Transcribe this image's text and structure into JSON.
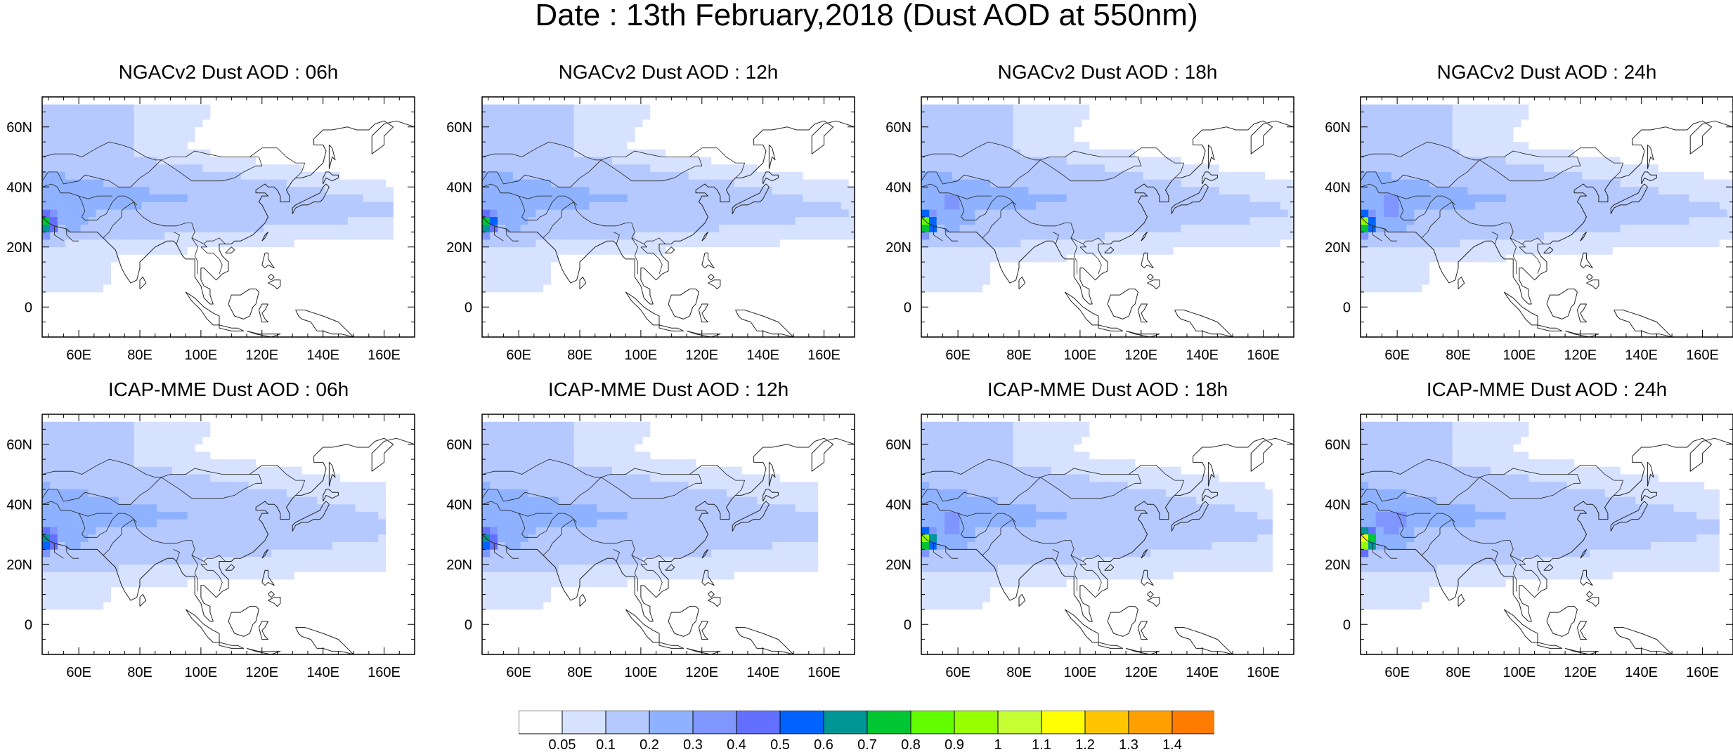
{
  "title": "Date : 13th February,2018 (Dust AOD at 550nm)",
  "map": {
    "lon_range": [
      48,
      170
    ],
    "lat_range": [
      -10,
      70
    ],
    "lon_ticks": [
      "60E",
      "80E",
      "100E",
      "120E",
      "140E",
      "160E"
    ],
    "lat_ticks": [
      "60N",
      "40N",
      "20N",
      "0"
    ]
  },
  "panels": [
    {
      "id": "ngac-06",
      "title": "NGACv2 Dust AOD : 06h",
      "model": "NGACv2",
      "hour": "06h",
      "row": 0,
      "col": 0,
      "band_lat": [
        10,
        55
      ],
      "core_strength": 0.55,
      "tail_lon": 164
    },
    {
      "id": "ngac-12",
      "title": "NGACv2 Dust AOD : 12h",
      "model": "NGACv2",
      "hour": "12h",
      "row": 0,
      "col": 1,
      "band_lat": [
        8,
        55
      ],
      "core_strength": 0.6,
      "tail_lon": 170
    },
    {
      "id": "ngac-18",
      "title": "NGACv2 Dust AOD : 18h",
      "model": "NGACv2",
      "hour": "18h",
      "row": 0,
      "col": 2,
      "band_lat": [
        8,
        58
      ],
      "core_strength": 0.75,
      "tail_lon": 170
    },
    {
      "id": "ngac-24",
      "title": "NGACv2 Dust AOD : 24h",
      "model": "NGACv2",
      "hour": "24h",
      "row": 0,
      "col": 3,
      "band_lat": [
        8,
        58
      ],
      "core_strength": 0.8,
      "tail_lon": 170
    },
    {
      "id": "icap-06",
      "title": "ICAP-MME Dust AOD : 06h",
      "model": "ICAP-MME",
      "hour": "06h",
      "row": 1,
      "col": 0,
      "band_lat": [
        5,
        60
      ],
      "core_strength": 0.45,
      "tail_lon": 160
    },
    {
      "id": "icap-12",
      "title": "ICAP-MME Dust AOD : 12h",
      "model": "ICAP-MME",
      "hour": "12h",
      "row": 1,
      "col": 1,
      "band_lat": [
        5,
        60
      ],
      "core_strength": 0.5,
      "tail_lon": 158
    },
    {
      "id": "icap-18",
      "title": "ICAP-MME Dust AOD : 18h",
      "model": "ICAP-MME",
      "hour": "18h",
      "row": 1,
      "col": 2,
      "band_lat": [
        5,
        60
      ],
      "core_strength": 0.85,
      "tail_lon": 162
    },
    {
      "id": "icap-24",
      "title": "ICAP-MME Dust AOD : 24h",
      "model": "ICAP-MME",
      "hour": "24h",
      "row": 1,
      "col": 3,
      "band_lat": [
        5,
        60
      ],
      "core_strength": 1.05,
      "tail_lon": 165
    }
  ],
  "colorbar": {
    "labels": [
      "0.05",
      "0.1",
      "0.2",
      "0.3",
      "0.4",
      "0.5",
      "0.6",
      "0.7",
      "0.8",
      "0.9",
      "1",
      "1.1",
      "1.2",
      "1.3",
      "1.4"
    ],
    "colors": [
      "#ffffff",
      "#d6e2ff",
      "#b5c9ff",
      "#8eb2ff",
      "#7f96ff",
      "#6370ff",
      "#0063ff",
      "#009696",
      "#00c633",
      "#63ff00",
      "#96ff00",
      "#c6ff33",
      "#ffff00",
      "#ffc600",
      "#ffa000",
      "#ff7c00",
      "#ff1900"
    ]
  }
}
